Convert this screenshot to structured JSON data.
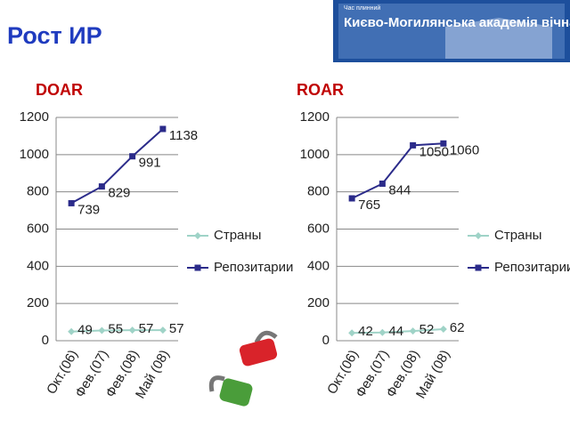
{
  "title": "Рост ИР",
  "banner": {
    "small_text": "Час плинний",
    "text": "Києво-Могилянська академія вічна"
  },
  "chart_data": [
    {
      "type": "line",
      "title": "DOAR",
      "categories": [
        "Окт.(06)",
        "Фев.(07)",
        "Фев.(08)",
        "Май (08)"
      ],
      "series": [
        {
          "name": "Страны",
          "color": "#9fd3c7",
          "marker": "diamond",
          "values": [
            49,
            55,
            57,
            57
          ]
        },
        {
          "name": "Репозитарии",
          "color": "#2b2b8a",
          "marker": "square",
          "values": [
            739,
            829,
            991,
            1138
          ]
        }
      ],
      "ylim": [
        0,
        1200
      ],
      "yticks": [
        0,
        200,
        400,
        600,
        800,
        1000,
        1200
      ],
      "grid": true
    },
    {
      "type": "line",
      "title": "ROAR",
      "categories": [
        "Окт.(06)",
        "Фев.(07)",
        "Фев.(08)",
        "Май (08)"
      ],
      "series": [
        {
          "name": "Страны",
          "color": "#9fd3c7",
          "marker": "diamond",
          "values": [
            42,
            44,
            52,
            62
          ]
        },
        {
          "name": "Репозитарии",
          "color": "#2b2b8a",
          "marker": "square",
          "values": [
            765,
            844,
            1050,
            1060
          ]
        }
      ],
      "ylim": [
        0,
        1200
      ],
      "yticks": [
        0,
        200,
        400,
        600,
        800,
        1000,
        1200
      ],
      "grid": true
    }
  ]
}
